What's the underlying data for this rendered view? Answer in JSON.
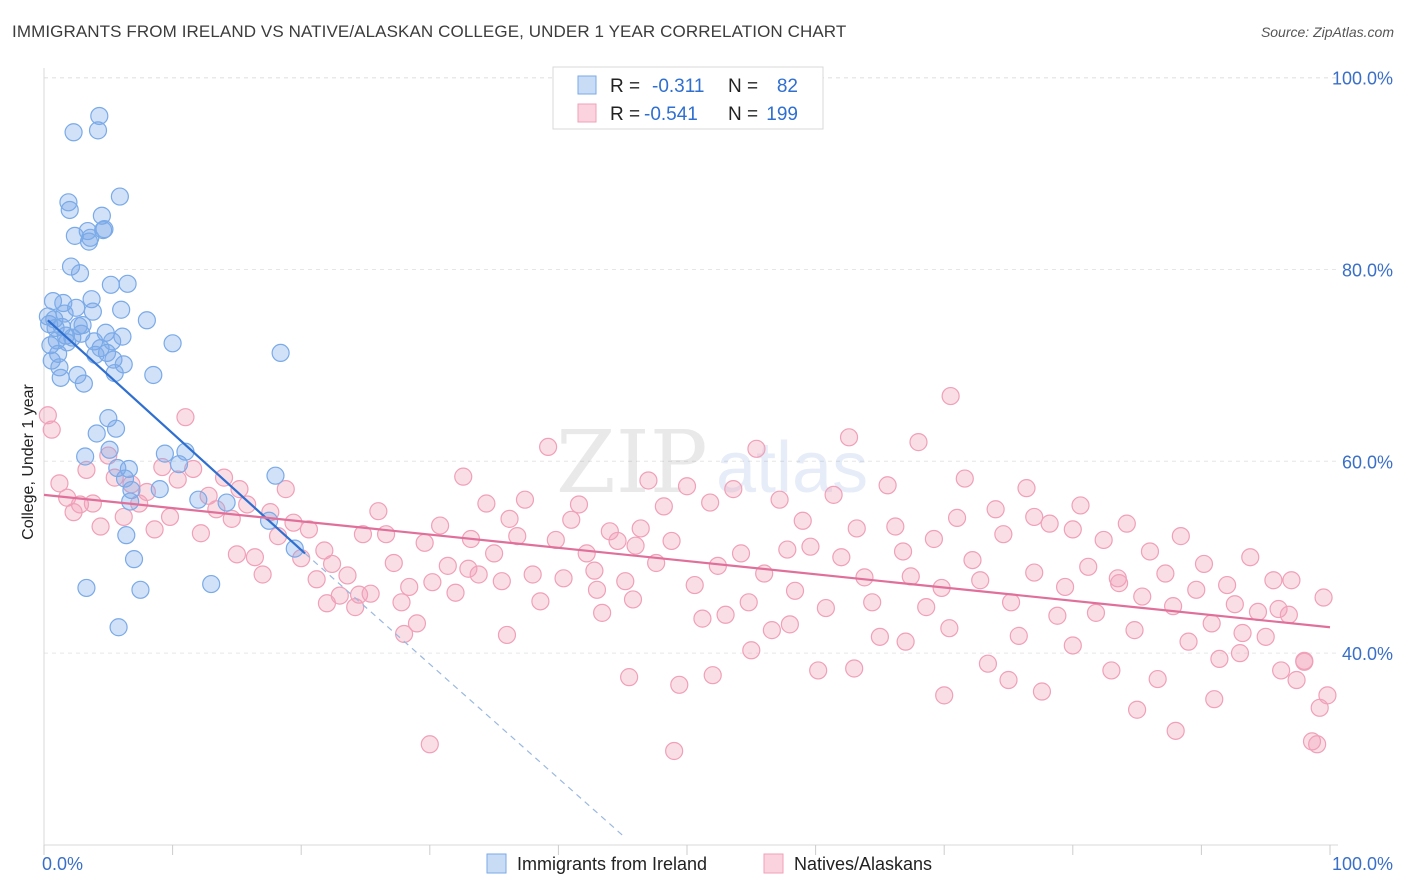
{
  "header": {
    "title": "IMMIGRANTS FROM IRELAND VS NATIVE/ALASKAN COLLEGE, UNDER 1 YEAR CORRELATION CHART",
    "source": "Source: ZipAtlas.com"
  },
  "watermark": {
    "part1": "ZIP",
    "part2": "atlas"
  },
  "chart_data": {
    "type": "scatter",
    "title": "IMMIGRANTS FROM IRELAND VS NATIVE/ALASKAN COLLEGE, UNDER 1 YEAR CORRELATION CHART",
    "xlabel": "",
    "ylabel": "College, Under 1 year",
    "xlim": [
      0,
      100
    ],
    "ylim": [
      20,
      101
    ],
    "x_tick_labels": [
      "0.0%",
      "100.0%"
    ],
    "y_ticks": [
      40,
      60,
      80,
      100
    ],
    "y_tick_labels": [
      "40.0%",
      "60.0%",
      "80.0%",
      "100.0%"
    ],
    "grid": true,
    "legend_position": "top-center",
    "colors": {
      "series1": "#7aaae8",
      "series1_line": "#2f6fd0",
      "series2": "#f0a0b8",
      "series2_line": "#e0709a",
      "tick_text": "#3a6fc8"
    },
    "stats": [
      {
        "r_label": "R =",
        "r_value": "-0.311",
        "n_label": "N =",
        "n_value": "82"
      },
      {
        "r_label": "R =",
        "r_value": "-0.541",
        "n_label": "N =",
        "n_value": "199"
      }
    ],
    "series": [
      {
        "name": "Immigrants from Ireland",
        "trend": {
          "x": [
            0.3,
            20.3
          ],
          "y": [
            74.7,
            50.4
          ],
          "dash_to": [
            45.0,
            21.0
          ]
        },
        "points": [
          [
            0.3,
            75.1
          ],
          [
            0.4,
            74.3
          ],
          [
            0.5,
            72.1
          ],
          [
            0.6,
            70.5
          ],
          [
            0.7,
            76.7
          ],
          [
            0.8,
            74.8
          ],
          [
            0.9,
            73.9
          ],
          [
            1.0,
            72.6
          ],
          [
            1.1,
            71.2
          ],
          [
            1.2,
            69.8
          ],
          [
            1.3,
            68.7
          ],
          [
            1.4,
            74.0
          ],
          [
            1.5,
            76.5
          ],
          [
            1.6,
            75.4
          ],
          [
            1.7,
            73.1
          ],
          [
            1.8,
            72.4
          ],
          [
            1.9,
            87.0
          ],
          [
            2.0,
            86.2
          ],
          [
            2.1,
            80.3
          ],
          [
            2.2,
            72.9
          ],
          [
            2.3,
            94.3
          ],
          [
            2.4,
            83.5
          ],
          [
            2.5,
            76.0
          ],
          [
            2.6,
            69.0
          ],
          [
            2.7,
            74.1
          ],
          [
            2.8,
            79.6
          ],
          [
            2.9,
            73.3
          ],
          [
            3.0,
            74.2
          ],
          [
            3.1,
            68.1
          ],
          [
            3.2,
            60.5
          ],
          [
            3.3,
            46.8
          ],
          [
            3.4,
            84.0
          ],
          [
            3.5,
            82.9
          ],
          [
            3.6,
            83.3
          ],
          [
            3.7,
            76.9
          ],
          [
            3.8,
            75.6
          ],
          [
            3.9,
            72.5
          ],
          [
            4.0,
            71.1
          ],
          [
            4.1,
            62.9
          ],
          [
            4.2,
            94.5
          ],
          [
            4.3,
            96.0
          ],
          [
            4.4,
            71.8
          ],
          [
            4.5,
            85.6
          ],
          [
            4.6,
            84.1
          ],
          [
            4.7,
            84.2
          ],
          [
            4.8,
            73.4
          ],
          [
            4.9,
            71.3
          ],
          [
            5.0,
            64.5
          ],
          [
            5.1,
            61.2
          ],
          [
            5.2,
            78.4
          ],
          [
            5.3,
            72.5
          ],
          [
            5.4,
            70.6
          ],
          [
            5.5,
            69.2
          ],
          [
            5.6,
            63.4
          ],
          [
            5.7,
            59.3
          ],
          [
            5.8,
            42.7
          ],
          [
            5.9,
            87.6
          ],
          [
            6.0,
            75.8
          ],
          [
            6.1,
            73.0
          ],
          [
            6.2,
            70.1
          ],
          [
            6.3,
            58.2
          ],
          [
            6.4,
            52.3
          ],
          [
            6.5,
            78.5
          ],
          [
            6.6,
            59.2
          ],
          [
            6.7,
            55.8
          ],
          [
            6.8,
            57.0
          ],
          [
            7.0,
            49.8
          ],
          [
            7.5,
            46.6
          ],
          [
            8.0,
            74.7
          ],
          [
            8.5,
            69.0
          ],
          [
            9.0,
            57.1
          ],
          [
            9.4,
            60.8
          ],
          [
            10.0,
            72.3
          ],
          [
            10.5,
            59.7
          ],
          [
            11.0,
            61.0
          ],
          [
            12.0,
            56.0
          ],
          [
            13.0,
            47.2
          ],
          [
            14.2,
            55.7
          ],
          [
            17.5,
            53.8
          ],
          [
            18.0,
            58.5
          ],
          [
            18.4,
            71.3
          ],
          [
            19.5,
            50.9
          ]
        ]
      },
      {
        "name": "Natives/Alaskans",
        "trend": {
          "x": [
            0.0,
            100.0
          ],
          "y": [
            56.5,
            42.7
          ]
        },
        "points": [
          [
            0.3,
            64.8
          ],
          [
            0.6,
            63.3
          ],
          [
            1.2,
            57.7
          ],
          [
            1.8,
            56.2
          ],
          [
            2.3,
            54.7
          ],
          [
            2.8,
            55.5
          ],
          [
            3.3,
            59.1
          ],
          [
            3.8,
            55.6
          ],
          [
            4.4,
            53.2
          ],
          [
            5.0,
            60.6
          ],
          [
            5.5,
            58.3
          ],
          [
            6.2,
            54.2
          ],
          [
            6.8,
            57.6
          ],
          [
            7.4,
            55.6
          ],
          [
            8.0,
            56.8
          ],
          [
            8.6,
            52.9
          ],
          [
            9.2,
            59.4
          ],
          [
            9.8,
            54.2
          ],
          [
            10.4,
            58.1
          ],
          [
            11.0,
            64.6
          ],
          [
            11.6,
            59.2
          ],
          [
            12.2,
            52.5
          ],
          [
            12.8,
            56.4
          ],
          [
            13.4,
            55.0
          ],
          [
            14.0,
            58.3
          ],
          [
            14.6,
            54.0
          ],
          [
            15.2,
            57.1
          ],
          [
            15.8,
            55.5
          ],
          [
            16.4,
            50.0
          ],
          [
            17.0,
            48.2
          ],
          [
            17.6,
            54.7
          ],
          [
            18.2,
            52.2
          ],
          [
            18.8,
            57.1
          ],
          [
            19.4,
            53.6
          ],
          [
            20.0,
            49.9
          ],
          [
            20.6,
            52.9
          ],
          [
            21.2,
            47.7
          ],
          [
            21.8,
            50.7
          ],
          [
            22.4,
            49.3
          ],
          [
            23.0,
            46.0
          ],
          [
            23.6,
            48.1
          ],
          [
            24.2,
            44.8
          ],
          [
            24.8,
            52.4
          ],
          [
            25.4,
            46.2
          ],
          [
            26.0,
            54.8
          ],
          [
            26.6,
            52.4
          ],
          [
            27.2,
            49.4
          ],
          [
            27.8,
            45.3
          ],
          [
            28.4,
            46.9
          ],
          [
            29.0,
            43.1
          ],
          [
            29.6,
            51.5
          ],
          [
            30.2,
            47.4
          ],
          [
            30.8,
            53.3
          ],
          [
            31.4,
            49.1
          ],
          [
            32.0,
            46.3
          ],
          [
            32.6,
            58.4
          ],
          [
            33.2,
            51.9
          ],
          [
            33.8,
            48.2
          ],
          [
            34.4,
            55.6
          ],
          [
            35.0,
            50.4
          ],
          [
            35.6,
            47.5
          ],
          [
            36.2,
            54.0
          ],
          [
            36.8,
            52.2
          ],
          [
            37.4,
            56.0
          ],
          [
            38.0,
            48.2
          ],
          [
            38.6,
            45.4
          ],
          [
            39.2,
            61.5
          ],
          [
            39.8,
            51.8
          ],
          [
            40.4,
            47.8
          ],
          [
            41.0,
            53.9
          ],
          [
            41.6,
            55.5
          ],
          [
            42.2,
            50.4
          ],
          [
            42.8,
            48.6
          ],
          [
            43.4,
            44.2
          ],
          [
            44.0,
            52.7
          ],
          [
            44.6,
            51.7
          ],
          [
            45.2,
            47.5
          ],
          [
            45.8,
            45.6
          ],
          [
            46.4,
            53.0
          ],
          [
            47.0,
            58.0
          ],
          [
            47.6,
            49.4
          ],
          [
            48.2,
            55.3
          ],
          [
            48.8,
            51.7
          ],
          [
            49.4,
            36.7
          ],
          [
            50.0,
            57.4
          ],
          [
            50.6,
            47.1
          ],
          [
            51.2,
            43.6
          ],
          [
            51.8,
            55.7
          ],
          [
            52.4,
            49.1
          ],
          [
            53.0,
            44.0
          ],
          [
            53.6,
            57.1
          ],
          [
            54.2,
            50.4
          ],
          [
            54.8,
            45.3
          ],
          [
            55.4,
            61.3
          ],
          [
            56.0,
            48.3
          ],
          [
            56.6,
            42.4
          ],
          [
            57.2,
            56.0
          ],
          [
            57.8,
            50.8
          ],
          [
            58.4,
            46.5
          ],
          [
            59.0,
            53.8
          ],
          [
            59.6,
            51.1
          ],
          [
            60.2,
            38.2
          ],
          [
            60.8,
            44.7
          ],
          [
            61.4,
            56.5
          ],
          [
            62.0,
            50.0
          ],
          [
            62.6,
            62.5
          ],
          [
            63.2,
            53.0
          ],
          [
            63.8,
            47.9
          ],
          [
            64.4,
            45.3
          ],
          [
            65.0,
            41.7
          ],
          [
            65.6,
            57.5
          ],
          [
            66.2,
            53.2
          ],
          [
            66.8,
            50.6
          ],
          [
            67.4,
            48.0
          ],
          [
            68.0,
            62.0
          ],
          [
            68.6,
            44.8
          ],
          [
            69.2,
            51.9
          ],
          [
            69.8,
            46.8
          ],
          [
            70.4,
            42.6
          ],
          [
            71.0,
            54.1
          ],
          [
            71.6,
            58.2
          ],
          [
            72.2,
            49.7
          ],
          [
            72.8,
            47.6
          ],
          [
            73.4,
            38.9
          ],
          [
            74.0,
            55.0
          ],
          [
            74.6,
            52.4
          ],
          [
            75.2,
            45.3
          ],
          [
            75.8,
            41.8
          ],
          [
            76.4,
            57.2
          ],
          [
            77.0,
            48.4
          ],
          [
            77.6,
            36.0
          ],
          [
            78.2,
            53.5
          ],
          [
            78.8,
            43.9
          ],
          [
            79.4,
            46.9
          ],
          [
            80.0,
            40.8
          ],
          [
            80.6,
            55.4
          ],
          [
            81.2,
            49.0
          ],
          [
            81.8,
            44.2
          ],
          [
            82.4,
            51.8
          ],
          [
            83.0,
            38.2
          ],
          [
            83.6,
            47.3
          ],
          [
            84.2,
            53.5
          ],
          [
            84.8,
            42.4
          ],
          [
            85.4,
            45.9
          ],
          [
            86.0,
            50.6
          ],
          [
            86.6,
            37.3
          ],
          [
            87.2,
            48.3
          ],
          [
            87.8,
            44.9
          ],
          [
            88.4,
            52.2
          ],
          [
            89.0,
            41.2
          ],
          [
            89.6,
            46.6
          ],
          [
            90.2,
            49.3
          ],
          [
            90.8,
            43.1
          ],
          [
            91.4,
            39.4
          ],
          [
            92.0,
            47.1
          ],
          [
            92.6,
            45.1
          ],
          [
            93.2,
            42.1
          ],
          [
            93.8,
            50.0
          ],
          [
            94.4,
            44.3
          ],
          [
            95.0,
            41.7
          ],
          [
            95.6,
            47.6
          ],
          [
            96.2,
            38.2
          ],
          [
            96.8,
            44.0
          ],
          [
            97.4,
            37.2
          ],
          [
            98.0,
            39.1
          ],
          [
            98.6,
            30.8
          ],
          [
            99.2,
            34.3
          ],
          [
            99.8,
            35.6
          ],
          [
            15.0,
            50.3
          ],
          [
            22.0,
            45.2
          ],
          [
            28.0,
            42.0
          ],
          [
            33.0,
            48.8
          ],
          [
            43.0,
            46.6
          ],
          [
            46.0,
            51.2
          ],
          [
            49.0,
            29.8
          ],
          [
            55.0,
            40.3
          ],
          [
            58.0,
            43.0
          ],
          [
            63.0,
            38.4
          ],
          [
            67.0,
            41.2
          ],
          [
            70.0,
            35.6
          ],
          [
            75.0,
            37.2
          ],
          [
            77.0,
            54.2
          ],
          [
            80.0,
            52.9
          ],
          [
            83.5,
            47.8
          ],
          [
            85.0,
            34.1
          ],
          [
            88.0,
            31.9
          ],
          [
            91.0,
            35.2
          ],
          [
            93.0,
            40.0
          ],
          [
            96.0,
            44.6
          ],
          [
            97.0,
            47.6
          ],
          [
            98.0,
            39.2
          ],
          [
            99.0,
            30.5
          ],
          [
            70.5,
            66.8
          ],
          [
            52.0,
            37.7
          ],
          [
            45.5,
            37.5
          ],
          [
            36.0,
            41.9
          ],
          [
            30.0,
            30.5
          ],
          [
            24.5,
            46.1
          ],
          [
            99.5,
            45.8
          ]
        ]
      }
    ]
  },
  "legend": {
    "items": [
      {
        "label": "Immigrants from Ireland"
      },
      {
        "label": "Natives/Alaskans"
      }
    ]
  }
}
